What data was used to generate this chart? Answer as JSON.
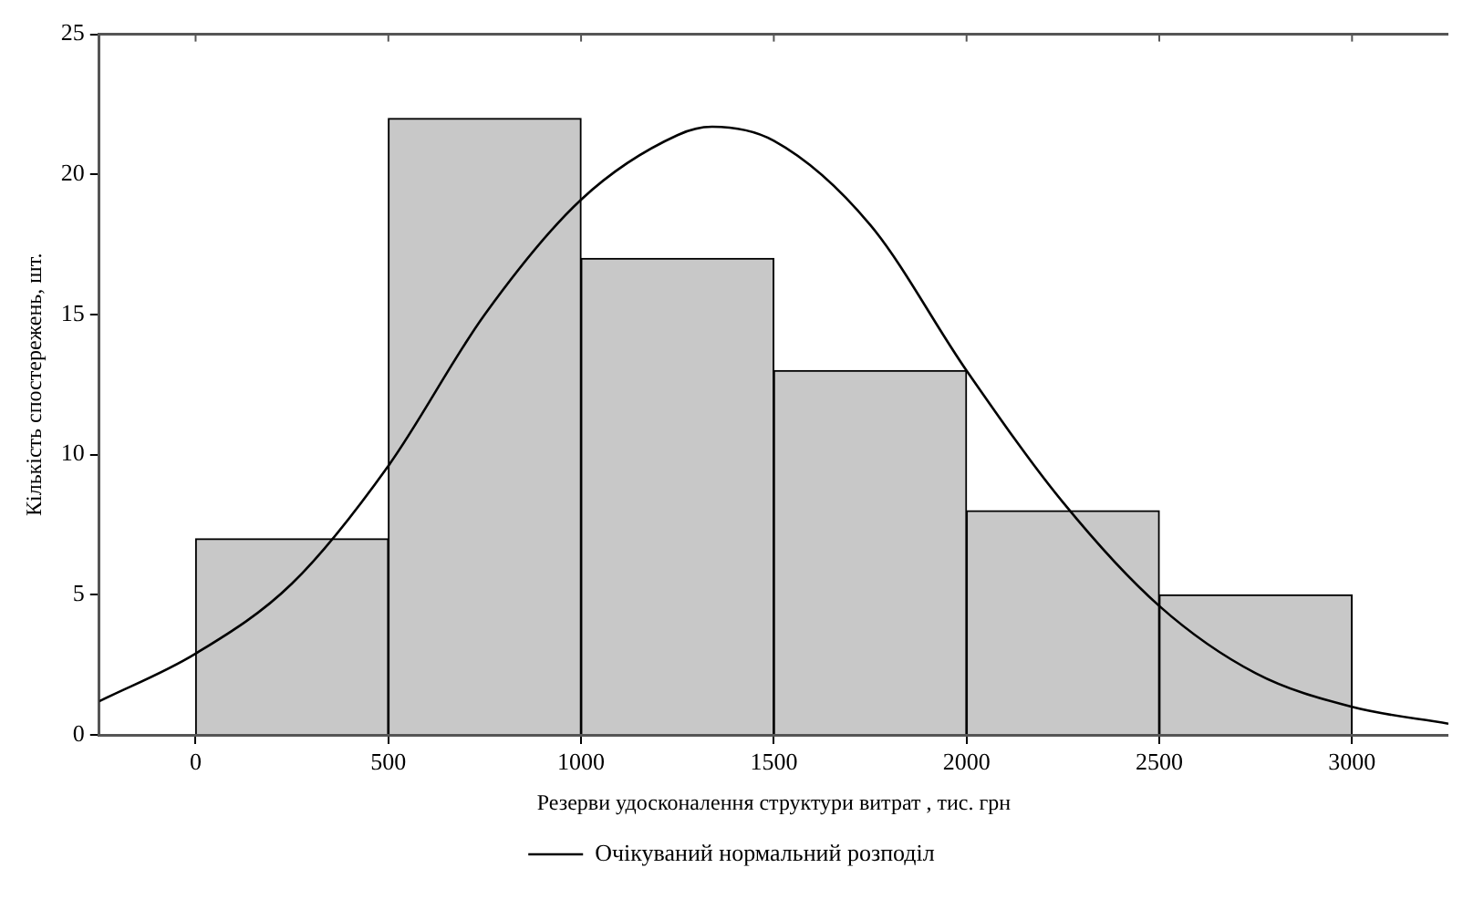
{
  "chart_data": {
    "type": "histogram",
    "xlabel": "Резерви удосконалення структури витрат , тис. грн",
    "ylabel": "Кількість спостережень, шт.",
    "bins": [
      0,
      500,
      1000,
      1500,
      2000,
      2500,
      3000
    ],
    "values": [
      7,
      22,
      17,
      13,
      8,
      5
    ],
    "color": "#c8c8c8",
    "series": [
      {
        "name": "Очікуваний нормальний розподіл",
        "type": "line",
        "color": "#000000",
        "x": [
          -250,
          0,
          250,
          500,
          750,
          1000,
          1250,
          1340,
          1500,
          1750,
          2000,
          2250,
          2500,
          2750,
          3000,
          3250
        ],
        "values": [
          1.2,
          2.9,
          5.4,
          9.6,
          15,
          19.1,
          21.4,
          21.7,
          21.2,
          18.2,
          13,
          8.3,
          4.6,
          2.2,
          1,
          0.4
        ]
      }
    ],
    "xlim": [
      -250,
      3250
    ],
    "xticks": [
      0,
      500,
      1000,
      1500,
      2000,
      2500,
      3000
    ],
    "ylim": [
      0,
      25
    ],
    "yticks": [
      0,
      5,
      10,
      15,
      20,
      25
    ],
    "grid": false,
    "legend": "bottom",
    "marker": "none",
    "line_style": "solid"
  }
}
